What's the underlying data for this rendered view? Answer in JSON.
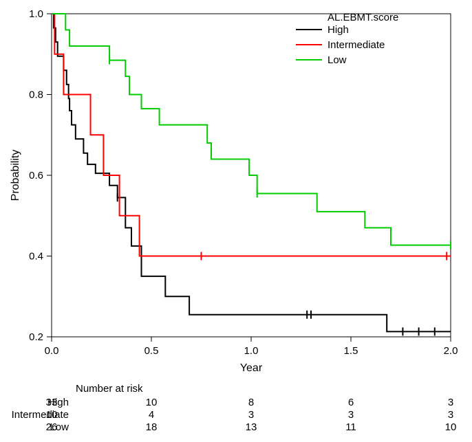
{
  "plot": {
    "background_color": "#ffffff",
    "axis_color": "#000000",
    "x_label": "Year",
    "y_label": "Probability",
    "xlim": [
      0.0,
      2.0
    ],
    "ylim": [
      0.2,
      1.0
    ],
    "x_ticks": [
      0.0,
      0.5,
      1.0,
      1.5,
      2.0
    ],
    "y_ticks": [
      0.2,
      0.4,
      0.6,
      0.8,
      1.0
    ],
    "line_width": 2,
    "tick_fontsize": 15,
    "label_fontsize": 16,
    "legend": {
      "title": "AL.EBMT.score",
      "items": [
        "High",
        "Intermediate",
        "Low"
      ],
      "colors": [
        "#000000",
        "#ff0000",
        "#00cc00"
      ],
      "title_fontsize": 15,
      "item_fontsize": 15
    },
    "series": {
      "High": {
        "color": "#000000",
        "steps": [
          [
            0.0,
            1.0
          ],
          [
            0.01,
            0.965
          ],
          [
            0.02,
            0.93
          ],
          [
            0.03,
            0.895
          ],
          [
            0.06,
            0.86
          ],
          [
            0.075,
            0.825
          ],
          [
            0.085,
            0.79
          ],
          [
            0.09,
            0.76
          ],
          [
            0.1,
            0.725
          ],
          [
            0.12,
            0.69
          ],
          [
            0.16,
            0.655
          ],
          [
            0.18,
            0.627
          ],
          [
            0.22,
            0.605
          ],
          [
            0.29,
            0.575
          ],
          [
            0.33,
            0.545
          ],
          [
            0.37,
            0.47
          ],
          [
            0.4,
            0.425
          ],
          [
            0.45,
            0.35
          ],
          [
            0.57,
            0.3
          ],
          [
            0.69,
            0.255
          ],
          [
            1.68,
            0.213
          ],
          [
            2.0,
            0.213
          ]
        ],
        "censors": [
          [
            0.33,
            0.545
          ],
          [
            1.28,
            0.255
          ],
          [
            1.3,
            0.255
          ],
          [
            1.76,
            0.213
          ],
          [
            1.84,
            0.213
          ],
          [
            1.92,
            0.213
          ]
        ]
      },
      "Intermediate": {
        "color": "#ff0000",
        "steps": [
          [
            0.0,
            1.0
          ],
          [
            0.015,
            0.9
          ],
          [
            0.06,
            0.8
          ],
          [
            0.195,
            0.7
          ],
          [
            0.26,
            0.6
          ],
          [
            0.34,
            0.5
          ],
          [
            0.44,
            0.4
          ],
          [
            2.0,
            0.4
          ]
        ],
        "censors": [
          [
            0.75,
            0.4
          ],
          [
            1.98,
            0.4
          ]
        ]
      },
      "Low": {
        "color": "#00cc00",
        "steps": [
          [
            0.0,
            1.0
          ],
          [
            0.07,
            0.96
          ],
          [
            0.09,
            0.92
          ],
          [
            0.29,
            0.885
          ],
          [
            0.37,
            0.845
          ],
          [
            0.39,
            0.8
          ],
          [
            0.45,
            0.765
          ],
          [
            0.54,
            0.725
          ],
          [
            0.78,
            0.68
          ],
          [
            0.8,
            0.64
          ],
          [
            0.99,
            0.6
          ],
          [
            1.03,
            0.555
          ],
          [
            1.33,
            0.51
          ],
          [
            1.57,
            0.47
          ],
          [
            1.7,
            0.427
          ],
          [
            2.0,
            0.427
          ]
        ],
        "censors": [
          [
            0.29,
            0.885
          ],
          [
            1.03,
            0.555
          ],
          [
            2.0,
            0.427
          ]
        ]
      }
    }
  },
  "risk_table": {
    "title": "Number at risk",
    "times": [
      0.0,
      0.5,
      1.0,
      1.5,
      2.0
    ],
    "rows": [
      {
        "label": "High",
        "values": [
          33,
          10,
          8,
          6,
          3
        ]
      },
      {
        "label": "Intermediate",
        "values": [
          10,
          4,
          3,
          3,
          3
        ]
      },
      {
        "label": "Low",
        "values": [
          26,
          18,
          13,
          11,
          10
        ]
      }
    ],
    "title_fontsize": 15,
    "label_fontsize": 15
  }
}
